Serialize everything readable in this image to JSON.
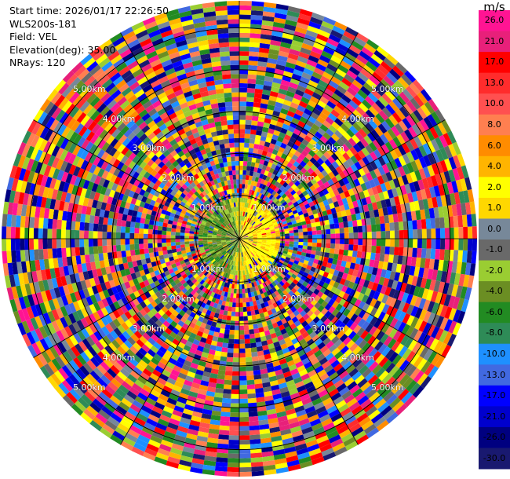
{
  "header": {
    "start_time": "Start time: 2026/01/17 22:26:50",
    "instrument": "WLS200s-181",
    "field": "Field: VEL",
    "elevation": "Elevation(deg): 35.00",
    "nrays": "NRays: 120"
  },
  "colorbar": {
    "unit": "m/s",
    "ticks": [
      "26.0",
      "21.0",
      "17.0",
      "13.0",
      "10.0",
      "8.0",
      "6.0",
      "4.0",
      "2.0",
      "1.0",
      "0.0",
      "-1.0",
      "-2.0",
      "-4.0",
      "-6.0",
      "-8.0",
      "-10.0",
      "-13.0",
      "-17.0",
      "-21.0",
      "-26.0",
      "-30.0"
    ],
    "colors": [
      "#ff1493",
      "#e8207a",
      "#ff0000",
      "#ff2c2c",
      "#ff5050",
      "#ff7f50",
      "#ff8c00",
      "#ffb400",
      "#ffff00",
      "#ffd700",
      "#778899",
      "#696969",
      "#9acd32",
      "#6b8e23",
      "#228b22",
      "#2e8b57",
      "#1e90ff",
      "#4169e1",
      "#0000ff",
      "#0000cd",
      "#000080",
      "#191970"
    ]
  },
  "ppi": {
    "range_labels": [
      "1.00km",
      "2.00km",
      "3.00km",
      "4.00km",
      "5.00km"
    ],
    "label_directions": [
      "NW",
      "NE",
      "SW",
      "SE"
    ]
  }
}
